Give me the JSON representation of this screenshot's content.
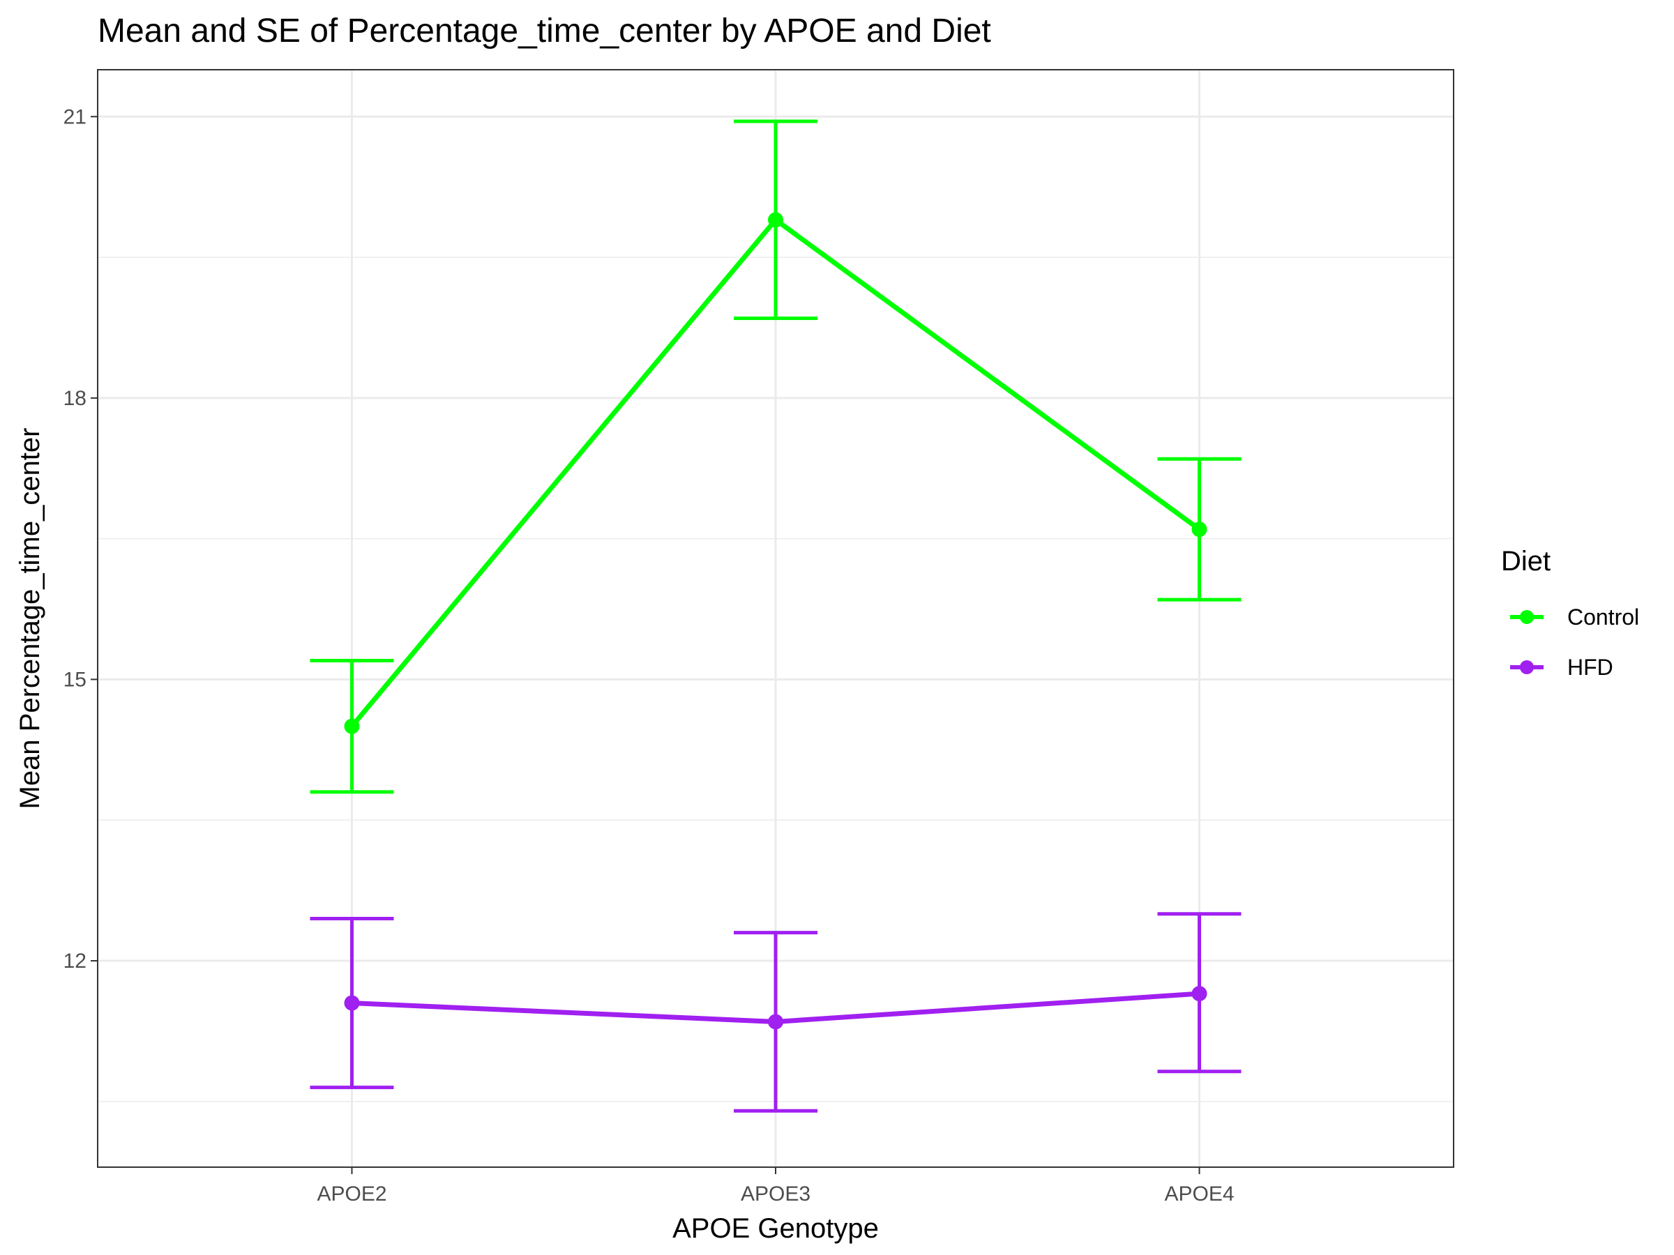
{
  "chart_data": {
    "type": "line",
    "title": "Mean and SE of Percentage_time_center by APOE and Diet",
    "xlabel": "APOE Genotype",
    "ylabel": "Mean Percentage_time_center",
    "categories": [
      "APOE2",
      "APOE3",
      "APOE4"
    ],
    "ylim": [
      9.8,
      21.5
    ],
    "yticks": [
      12,
      15,
      18,
      21
    ],
    "grid": true,
    "legend": {
      "title": "Diet",
      "placement": "right"
    },
    "series": [
      {
        "name": "Control",
        "color": "#00ff00",
        "values": [
          14.5,
          19.9,
          16.6
        ],
        "se_low": [
          13.8,
          18.85,
          15.85
        ],
        "se_high": [
          15.2,
          20.95,
          17.35
        ]
      },
      {
        "name": "HFD",
        "color": "#a020f0",
        "values": [
          11.55,
          11.35,
          11.65
        ],
        "se_low": [
          10.65,
          10.4,
          10.82
        ],
        "se_high": [
          12.45,
          12.3,
          12.5
        ]
      }
    ]
  }
}
